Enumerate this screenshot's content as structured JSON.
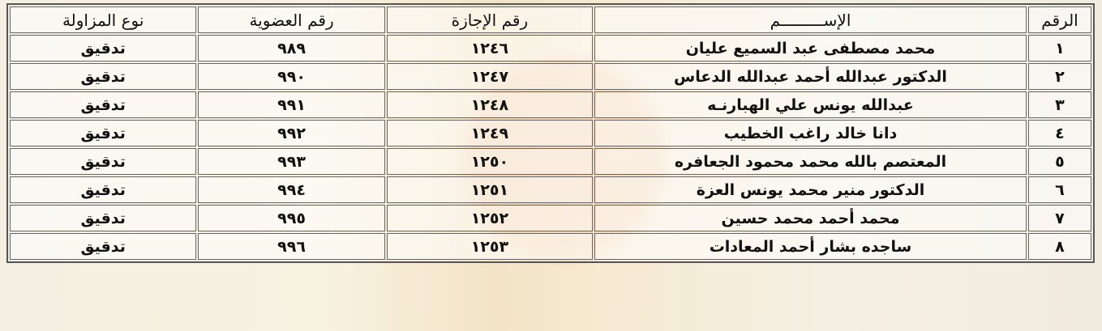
{
  "headers": {
    "no": "الرقم",
    "name": "الإســـــــــم",
    "license": "رقم الإجازة",
    "membership": "رقم العضوية",
    "practice_type": "نوع المزاولة"
  },
  "rows": [
    {
      "no": "١",
      "name": "محمد مصطفى عبد السميع عليان",
      "license": "١٢٤٦",
      "membership": "٩٨٩",
      "type": "تدقيق"
    },
    {
      "no": "٢",
      "name": "الدكتور عبدالله أحمد عبدالله الدعاس",
      "license": "١٢٤٧",
      "membership": "٩٩٠",
      "type": "تدقيق"
    },
    {
      "no": "٣",
      "name": "عبدالله يونس علي الهبارنـه",
      "license": "١٢٤٨",
      "membership": "٩٩١",
      "type": "تدقيق"
    },
    {
      "no": "٤",
      "name": "دانا خالد راغب الخطيب",
      "license": "١٢٤٩",
      "membership": "٩٩٢",
      "type": "تدقيق"
    },
    {
      "no": "٥",
      "name": "المعتصم بالله محمد محمود الجعافره",
      "license": "١٢٥٠",
      "membership": "٩٩٣",
      "type": "تدقيق"
    },
    {
      "no": "٦",
      "name": "الدكتور منير محمد يونس العزة",
      "license": "١٢٥١",
      "membership": "٩٩٤",
      "type": "تدقيق"
    },
    {
      "no": "٧",
      "name": "محمد أحمد محمد حسين",
      "license": "١٢٥٢",
      "membership": "٩٩٥",
      "type": "تدقيق"
    },
    {
      "no": "٨",
      "name": "ساجده بشار أحمد المعادات",
      "license": "١٢٥٣",
      "membership": "٩٩٦",
      "type": "تدقيق"
    }
  ]
}
